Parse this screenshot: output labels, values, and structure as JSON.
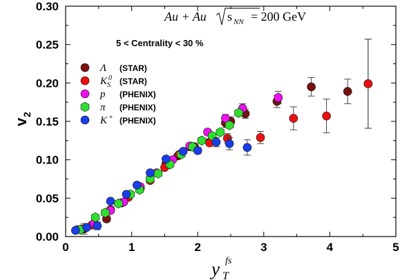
{
  "chart_data": {
    "type": "scatter",
    "title": "",
    "xlabel": "y",
    "xlabel_sub": "T",
    "xlabel_sup": "fs",
    "ylabel": "v",
    "ylabel_sub": "2",
    "xlim": [
      0,
      5
    ],
    "ylim": [
      0,
      0.3
    ],
    "xticks": [
      "0",
      "1",
      "2",
      "3",
      "4",
      "5"
    ],
    "yticks": [
      "0.00",
      "0.05",
      "0.10",
      "0.15",
      "0.20",
      "0.25",
      "0.30"
    ],
    "grid": false,
    "legend_position": "top-left",
    "annotation_system": {
      "lhs": "Au + Au",
      "sqrt_arg": "s",
      "sqrt_sub": "NN",
      "rhs": "= 200 GeV"
    },
    "annotation_centrality": "5 < Centrality < 30 %",
    "series": [
      {
        "symbol": "Λ",
        "symbol_sub": "",
        "symbol_sup": "",
        "tag": "(STAR)",
        "color": "#7a1010",
        "marker": "circle",
        "points": [
          [
            0.28,
            0.01
          ],
          [
            0.62,
            0.023
          ],
          [
            0.85,
            0.044
          ],
          [
            1.13,
            0.063
          ],
          [
            1.52,
            0.095
          ],
          [
            1.7,
            0.105
          ],
          [
            1.95,
            0.117
          ],
          [
            2.18,
            0.123
          ],
          [
            2.42,
            0.148
          ],
          [
            2.5,
            0.15
          ],
          [
            2.72,
            0.16
          ],
          [
            3.2,
            0.176
          ],
          [
            3.72,
            0.195
          ],
          [
            4.27,
            0.189
          ],
          [
            4.58,
            0.199
          ]
        ],
        "errors": [
          0.007,
          0.004,
          0.004,
          0.003,
          0.003,
          0.003,
          0.003,
          0.003,
          0.006,
          0.006,
          0.006,
          0.008,
          0.012,
          0.016,
          0.058
        ]
      },
      {
        "symbol": "K",
        "symbol_sub": "S",
        "symbol_sup": "0",
        "tag": "(STAR)",
        "color": "#e81010",
        "marker": "circle",
        "points": [
          [
            0.25,
            0.01
          ],
          [
            0.4,
            0.015
          ],
          [
            0.68,
            0.035
          ],
          [
            0.95,
            0.051
          ],
          [
            1.28,
            0.073
          ],
          [
            1.5,
            0.09
          ],
          [
            1.72,
            0.107
          ],
          [
            1.88,
            0.117
          ],
          [
            2.18,
            0.122
          ],
          [
            2.45,
            0.128
          ],
          [
            2.95,
            0.129
          ],
          [
            3.45,
            0.154
          ],
          [
            3.95,
            0.157
          ],
          [
            4.58,
            0.199
          ]
        ],
        "errors": [
          0.004,
          0.004,
          0.003,
          0.003,
          0.003,
          0.003,
          0.003,
          0.003,
          0.004,
          0.006,
          0.008,
          0.015,
          0.022,
          0.058
        ]
      },
      {
        "symbol": "p",
        "symbol_sub": "",
        "symbol_sup": "",
        "tag": "(PHENIX)",
        "color": "#ee10ee",
        "marker": "circle",
        "points": [
          [
            0.18,
            0.009
          ],
          [
            0.43,
            0.017
          ],
          [
            0.68,
            0.034
          ],
          [
            0.88,
            0.045
          ],
          [
            1.13,
            0.065
          ],
          [
            1.38,
            0.083
          ],
          [
            1.62,
            0.1
          ],
          [
            1.88,
            0.118
          ],
          [
            2.15,
            0.136
          ],
          [
            2.42,
            0.154
          ],
          [
            2.68,
            0.167
          ],
          [
            3.22,
            0.181
          ]
        ],
        "errors": [
          0.003,
          0.003,
          0.003,
          0.003,
          0.003,
          0.003,
          0.003,
          0.003,
          0.004,
          0.005,
          0.006,
          0.008
        ]
      },
      {
        "symbol": "π",
        "symbol_sub": "",
        "symbol_sup": "",
        "tag": "(PHENIX)",
        "color": "#2ee02e",
        "marker": "hexagon",
        "points": [
          [
            0.22,
            0.009
          ],
          [
            0.45,
            0.025
          ],
          [
            0.6,
            0.031
          ],
          [
            0.8,
            0.043
          ],
          [
            0.98,
            0.055
          ],
          [
            1.12,
            0.061
          ],
          [
            1.28,
            0.075
          ],
          [
            1.4,
            0.082
          ],
          [
            1.58,
            0.094
          ],
          [
            1.75,
            0.107
          ],
          [
            1.92,
            0.117
          ],
          [
            2.06,
            0.125
          ],
          [
            2.22,
            0.131
          ],
          [
            2.34,
            0.136
          ],
          [
            2.48,
            0.145
          ],
          [
            2.62,
            0.161
          ]
        ],
        "errors": [
          0.002,
          0.002,
          0.002,
          0.002,
          0.002,
          0.002,
          0.002,
          0.002,
          0.002,
          0.002,
          0.002,
          0.003,
          0.003,
          0.003,
          0.003,
          0.003
        ]
      },
      {
        "symbol": "K",
        "symbol_sub": "",
        "symbol_sup": "+",
        "tag": "(PHENIX)",
        "color": "#1a3ee8",
        "marker": "circle",
        "points": [
          [
            0.15,
            0.008
          ],
          [
            0.32,
            0.012
          ],
          [
            0.48,
            0.014
          ],
          [
            0.68,
            0.046
          ],
          [
            0.92,
            0.055
          ],
          [
            1.08,
            0.067
          ],
          [
            1.28,
            0.083
          ],
          [
            1.52,
            0.101
          ],
          [
            1.78,
            0.111
          ],
          [
            2.0,
            0.112
          ],
          [
            2.28,
            0.123
          ],
          [
            2.48,
            0.121
          ],
          [
            2.75,
            0.116
          ]
        ],
        "errors": [
          0.003,
          0.003,
          0.005,
          0.003,
          0.003,
          0.003,
          0.003,
          0.003,
          0.003,
          0.004,
          0.006,
          0.008,
          0.01
        ]
      }
    ]
  }
}
